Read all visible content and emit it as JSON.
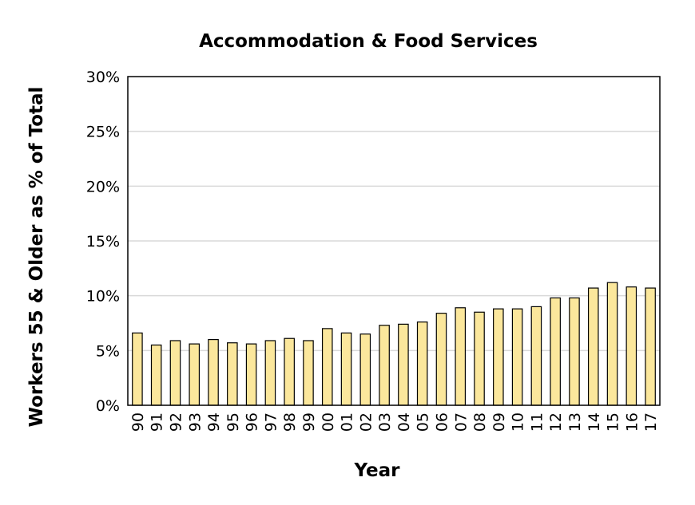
{
  "chart_data": {
    "type": "bar",
    "title": "Accommodation & Food Services",
    "xlabel": "Year",
    "ylabel": "Workers 55 & Older as % of Total",
    "ylim": [
      0,
      30
    ],
    "yticks": [
      "0%",
      "5%",
      "10%",
      "15%",
      "20%",
      "25%",
      "30%"
    ],
    "grid": true,
    "legend": "none",
    "bar_color": "#fbe79c",
    "categories": [
      "90",
      "91",
      "92",
      "93",
      "94",
      "95",
      "96",
      "97",
      "98",
      "99",
      "00",
      "01",
      "02",
      "03",
      "04",
      "05",
      "06",
      "07",
      "08",
      "09",
      "10",
      "11",
      "12",
      "13",
      "14",
      "15",
      "16",
      "17"
    ],
    "values": [
      6.6,
      5.5,
      5.9,
      5.6,
      6.0,
      5.7,
      5.6,
      5.9,
      6.1,
      5.9,
      7.0,
      6.6,
      6.5,
      7.3,
      7.4,
      7.6,
      8.4,
      8.9,
      8.5,
      8.8,
      8.8,
      9.0,
      9.8,
      9.8,
      10.7,
      11.2,
      10.8,
      10.7
    ]
  }
}
